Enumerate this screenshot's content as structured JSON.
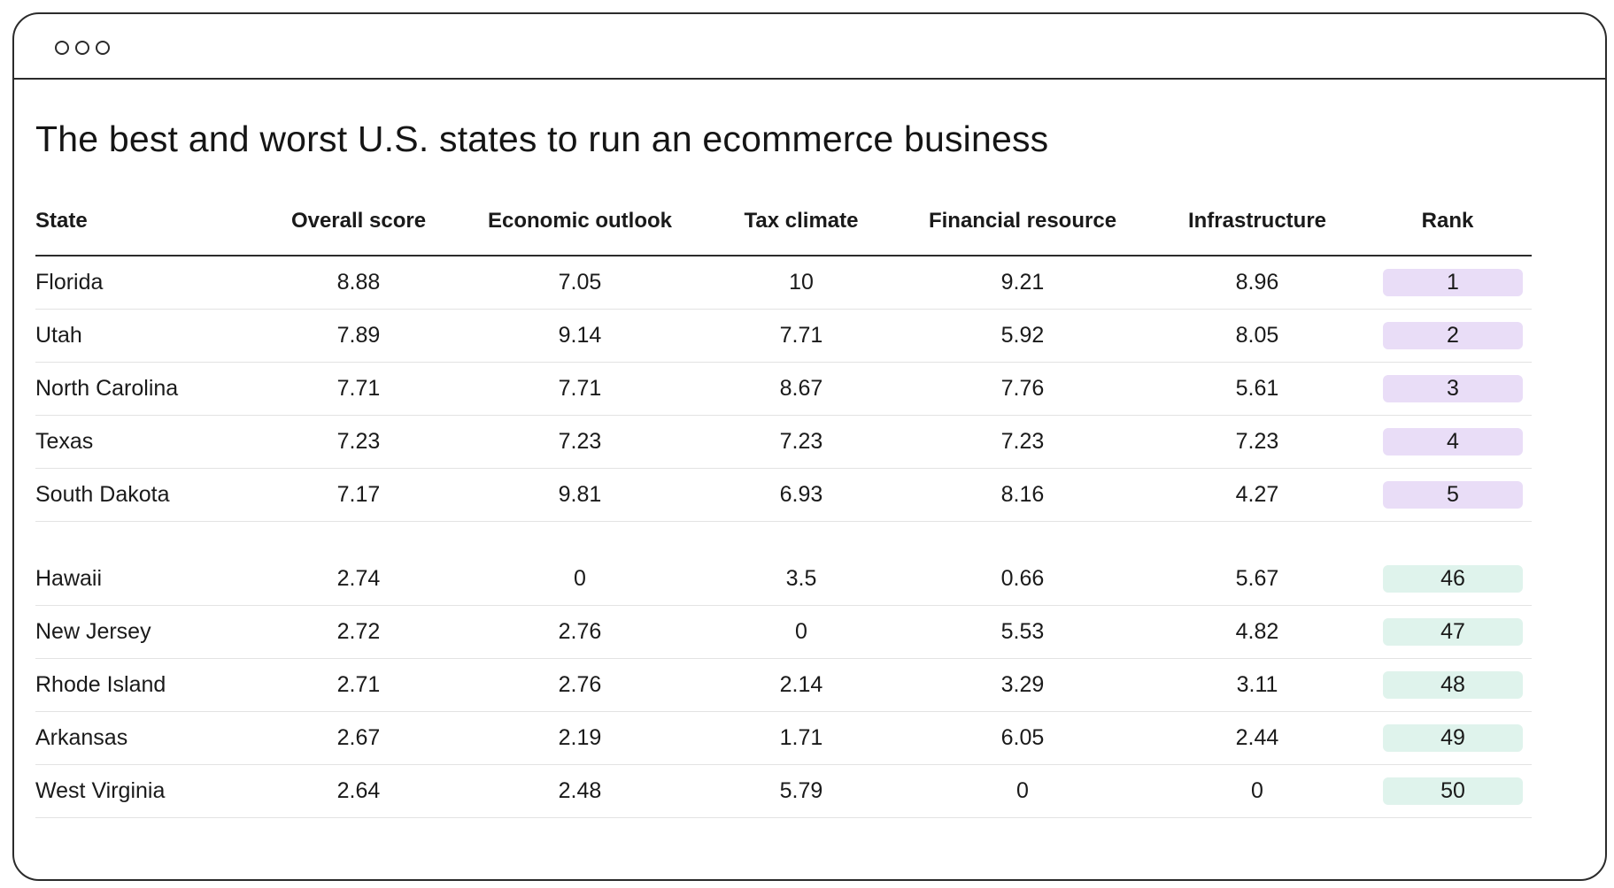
{
  "page_title": "The best and worst U.S. states to run an ecommerce business",
  "colors": {
    "top_rank_bg": "#e9ddf7",
    "bottom_rank_bg": "#dff3ec",
    "border": "#2b2b2b"
  },
  "table": {
    "columns": [
      "State",
      "Overall score",
      "Economic outlook",
      "Tax climate",
      "Financial resource",
      "Infrastructure",
      "Rank"
    ],
    "top_rows": [
      {
        "state": "Florida",
        "overall": "8.88",
        "economic": "7.05",
        "tax": "10",
        "financial": "9.21",
        "infrastructure": "8.96",
        "rank": "1"
      },
      {
        "state": "Utah",
        "overall": "7.89",
        "economic": "9.14",
        "tax": "7.71",
        "financial": "5.92",
        "infrastructure": "8.05",
        "rank": "2"
      },
      {
        "state": "North Carolina",
        "overall": "7.71",
        "economic": "7.71",
        "tax": "8.67",
        "financial": "7.76",
        "infrastructure": "5.61",
        "rank": "3"
      },
      {
        "state": "Texas",
        "overall": "7.23",
        "economic": "7.23",
        "tax": "7.23",
        "financial": "7.23",
        "infrastructure": "7.23",
        "rank": "4"
      },
      {
        "state": "South Dakota",
        "overall": "7.17",
        "economic": "9.81",
        "tax": "6.93",
        "financial": "8.16",
        "infrastructure": "4.27",
        "rank": "5"
      }
    ],
    "bottom_rows": [
      {
        "state": "Hawaii",
        "overall": "2.74",
        "economic": "0",
        "tax": "3.5",
        "financial": "0.66",
        "infrastructure": "5.67",
        "rank": "46"
      },
      {
        "state": "New Jersey",
        "overall": "2.72",
        "economic": "2.76",
        "tax": "0",
        "financial": "5.53",
        "infrastructure": "4.82",
        "rank": "47"
      },
      {
        "state": "Rhode Island",
        "overall": "2.71",
        "economic": "2.76",
        "tax": "2.14",
        "financial": "3.29",
        "infrastructure": "3.11",
        "rank": "48"
      },
      {
        "state": "Arkansas",
        "overall": "2.67",
        "economic": "2.19",
        "tax": "1.71",
        "financial": "6.05",
        "infrastructure": "2.44",
        "rank": "49"
      },
      {
        "state": "West Virginia",
        "overall": "2.64",
        "economic": "2.48",
        "tax": "5.79",
        "financial": "0",
        "infrastructure": "0",
        "rank": "50"
      }
    ]
  }
}
